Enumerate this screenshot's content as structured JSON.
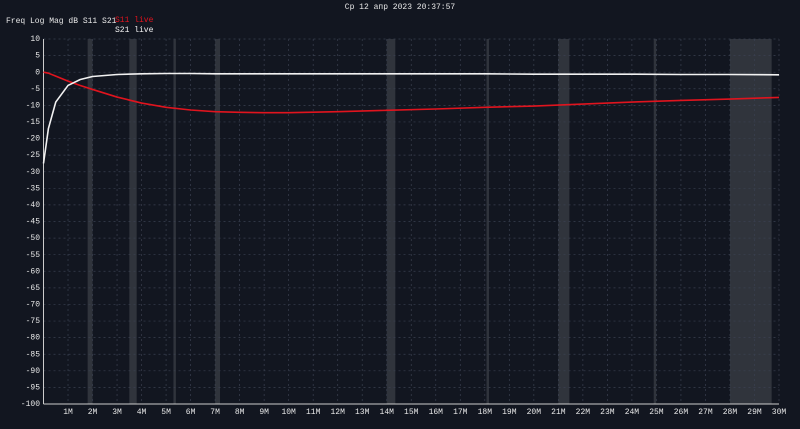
{
  "chart_data": {
    "type": "line",
    "title": "Ср 12 апр 2023 20:37:57",
    "label": "Freq Log Mag dB S11 S21",
    "x": [
      0,
      0.2,
      0.5,
      1,
      1.5,
      2,
      3,
      4,
      5,
      6,
      7,
      8,
      9,
      10,
      12,
      14,
      16,
      18,
      20,
      22,
      24,
      26,
      28,
      30
    ],
    "series": [
      {
        "name": "S11 live",
        "color": "#e0141e",
        "values": [
          0,
          -0.3,
          -1.2,
          -2.7,
          -4,
          -5.2,
          -7.5,
          -9.3,
          -10.6,
          -11.4,
          -11.9,
          -12.1,
          -12.2,
          -12.2,
          -11.9,
          -11.5,
          -11.1,
          -10.6,
          -10.2,
          -9.6,
          -9.0,
          -8.5,
          -8.1,
          -7.6
        ]
      },
      {
        "name": "S21 live",
        "color": "#f2f2f2",
        "values": [
          -27.5,
          -17,
          -9,
          -4,
          -2.2,
          -1.3,
          -0.7,
          -0.5,
          -0.4,
          -0.4,
          -0.5,
          -0.5,
          -0.5,
          -0.5,
          -0.5,
          -0.5,
          -0.5,
          -0.5,
          -0.6,
          -0.6,
          -0.6,
          -0.7,
          -0.7,
          -0.8
        ]
      }
    ],
    "highlight_bands": [
      [
        1.8,
        2.0
      ],
      [
        3.5,
        3.8
      ],
      [
        5.3,
        5.4
      ],
      [
        7.0,
        7.2
      ],
      [
        14.0,
        14.35
      ],
      [
        18.07,
        18.17
      ],
      [
        21.0,
        21.45
      ],
      [
        24.89,
        24.99
      ],
      [
        28.0,
        29.7
      ]
    ],
    "xlim": [
      0,
      30
    ],
    "ylim": [
      -100,
      10
    ],
    "xticks": [
      {
        "value": 1,
        "label": "1M"
      },
      {
        "value": 2,
        "label": "2M"
      },
      {
        "value": 3,
        "label": "3M"
      },
      {
        "value": 4,
        "label": "4M"
      },
      {
        "value": 5,
        "label": "5M"
      },
      {
        "value": 6,
        "label": "6M"
      },
      {
        "value": 7,
        "label": "7M"
      },
      {
        "value": 8,
        "label": "8M"
      },
      {
        "value": 9,
        "label": "9M"
      },
      {
        "value": 10,
        "label": "10M"
      },
      {
        "value": 11,
        "label": "11M"
      },
      {
        "value": 12,
        "label": "12M"
      },
      {
        "value": 13,
        "label": "13M"
      },
      {
        "value": 14,
        "label": "14M"
      },
      {
        "value": 15,
        "label": "15M"
      },
      {
        "value": 16,
        "label": "16M"
      },
      {
        "value": 17,
        "label": "17M"
      },
      {
        "value": 18,
        "label": "18M"
      },
      {
        "value": 19,
        "label": "19M"
      },
      {
        "value": 20,
        "label": "20M"
      },
      {
        "value": 21,
        "label": "21M"
      },
      {
        "value": 22,
        "label": "22M"
      },
      {
        "value": 23,
        "label": "23M"
      },
      {
        "value": 24,
        "label": "24M"
      },
      {
        "value": 25,
        "label": "25M"
      },
      {
        "value": 26,
        "label": "26M"
      },
      {
        "value": 27,
        "label": "27M"
      },
      {
        "value": 28,
        "label": "28M"
      },
      {
        "value": 29,
        "label": "29M"
      },
      {
        "value": 30,
        "label": "30M"
      }
    ],
    "yticks": [
      10,
      5,
      0,
      -5,
      -10,
      -15,
      -20,
      -25,
      -30,
      -35,
      -40,
      -45,
      -50,
      -55,
      -60,
      -65,
      -70,
      -75,
      -80,
      -85,
      -90,
      -95,
      -100
    ],
    "grid": true
  }
}
